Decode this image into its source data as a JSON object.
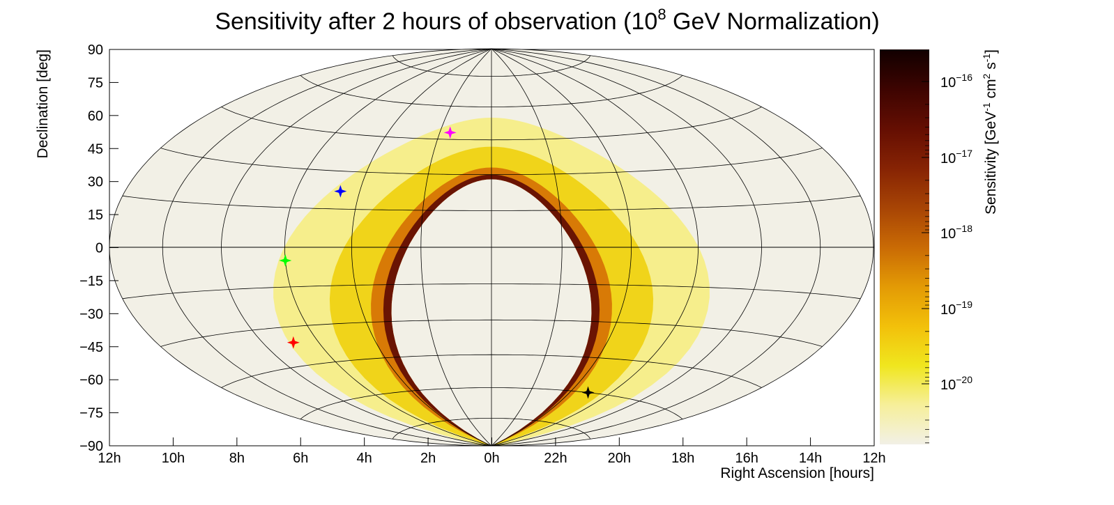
{
  "chart_data": {
    "type": "heatmap",
    "projection": "aitoff-hammer",
    "title": {
      "main": "Sensitivity after 2 hours of observation (10",
      "sup": "8",
      "rest": " GeV Normalization)"
    },
    "xlabel": "Right Ascension [hours]",
    "ylabel": "Declination [deg]",
    "x_tick_labels": [
      "12h",
      "10h",
      "8h",
      "6h",
      "4h",
      "2h",
      "0h",
      "22h",
      "20h",
      "18h",
      "16h",
      "14h",
      "12h"
    ],
    "y_ticks": [
      90,
      75,
      60,
      45,
      30,
      15,
      0,
      -15,
      -30,
      -45,
      -60,
      -75,
      -90
    ],
    "y_tick_labels": [
      "90",
      "75",
      "60",
      "45",
      "30",
      "15",
      "0",
      "−15",
      "−30",
      "−45",
      "−60",
      "−75",
      "−90"
    ],
    "ylim": [
      -90,
      90
    ],
    "colorbar": {
      "label_main": "Sensitivity [GeV",
      "sup1": "-1",
      "label_mid": " cm",
      "sup2": "2",
      "label_mid2": " s",
      "sup3": "-1",
      "label_end": "]",
      "scale": "log",
      "tick_mantissa": "10",
      "tick_exponents": [
        "−16",
        "−17",
        "−18",
        "−19",
        "−20"
      ],
      "colors": [
        "#f2f0e6",
        "#f6ef9a",
        "#f0e61e",
        "#f2c00a",
        "#e39a05",
        "#c96a05",
        "#a74405",
        "#862304",
        "#640e02",
        "#3d0401",
        "#110000"
      ]
    },
    "band_description": "sensitive region band",
    "sources": [
      {
        "ra_hours": 6.9,
        "dec": -36,
        "color": "#ff0000"
      },
      {
        "ra_hours": 6.0,
        "dec": -5,
        "color": "#00ff00"
      },
      {
        "ra_hours": 4.6,
        "dec": 22,
        "color": "#0000ff"
      },
      {
        "ra_hours": 1.6,
        "dec": 48,
        "color": "#ff00ff"
      },
      {
        "ra_hours": 19.1,
        "dec": -60,
        "color": "#000000"
      }
    ],
    "background_color": "#f2f0e6",
    "grid": true
  }
}
